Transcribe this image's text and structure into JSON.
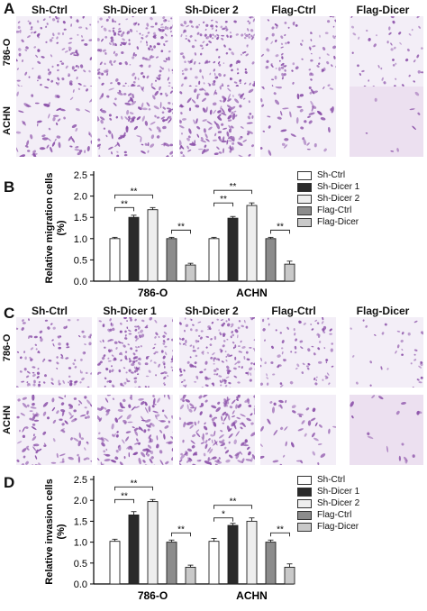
{
  "panels": {
    "A": "A",
    "B": "B",
    "C": "C",
    "D": "D"
  },
  "column_headers": [
    "Sh-Ctrl",
    "Sh-Dicer 1",
    "Sh-Dicer 2",
    "Flag-Ctrl",
    "Flag-Dicer"
  ],
  "row_labels": [
    "786-O",
    "ACHN"
  ],
  "legend": [
    "Sh-Ctrl",
    "Sh-Dicer 1",
    "Sh-Dicer 2",
    "Flag-Ctrl",
    "Flag-Dicer"
  ],
  "colors": {
    "Sh-Ctrl": "#ffffff",
    "Sh-Dicer 1": "#2a2a2a",
    "Sh-Dicer 2": "#eeeeee",
    "Flag-Ctrl": "#8c8c8c",
    "Flag-Dicer": "#c9c9c9",
    "stain": "#8a4fa8",
    "background": "#f3eef7"
  },
  "micro_density": {
    "A": [
      [
        0.7,
        1.0,
        0.9,
        0.5,
        0.3
      ],
      [
        0.4,
        0.7,
        0.8,
        0.3,
        0.05
      ]
    ],
    "C": [
      [
        0.6,
        1.0,
        1.0,
        0.5,
        0.2
      ],
      [
        0.6,
        0.8,
        0.9,
        0.25,
        0.1
      ]
    ]
  },
  "chart_data": [
    {
      "type": "bar",
      "title": "",
      "xlabel": "",
      "ylabel": "Relative migration cells\n(%)",
      "categories": [
        "786-O",
        "ACHN"
      ],
      "series": [
        {
          "name": "Sh-Ctrl",
          "values": [
            1.0,
            1.0
          ],
          "errors": [
            0.03,
            0.03
          ]
        },
        {
          "name": "Sh-Dicer 1",
          "values": [
            1.5,
            1.48
          ],
          "errors": [
            0.05,
            0.04
          ]
        },
        {
          "name": "Sh-Dicer 2",
          "values": [
            1.68,
            1.78
          ],
          "errors": [
            0.05,
            0.06
          ]
        },
        {
          "name": "Flag-Ctrl",
          "values": [
            1.0,
            1.0
          ],
          "errors": [
            0.03,
            0.03
          ]
        },
        {
          "name": "Flag-Dicer",
          "values": [
            0.38,
            0.4
          ],
          "errors": [
            0.04,
            0.07
          ]
        }
      ],
      "yticks": [
        "0.0",
        "0.5",
        "1.0",
        "1.5",
        "2.0",
        "2.5"
      ],
      "ylim": [
        0,
        2.5
      ],
      "significance": "**",
      "grid": false,
      "legend_position": "right"
    },
    {
      "type": "bar",
      "title": "",
      "xlabel": "",
      "ylabel": "Relative invasion cells\n(%)",
      "categories": [
        "786-O",
        "ACHN"
      ],
      "series": [
        {
          "name": "Sh-Ctrl",
          "values": [
            1.02,
            1.02
          ],
          "errors": [
            0.05,
            0.07
          ]
        },
        {
          "name": "Sh-Dicer 1",
          "values": [
            1.65,
            1.4
          ],
          "errors": [
            0.08,
            0.05
          ]
        },
        {
          "name": "Sh-Dicer 2",
          "values": [
            1.97,
            1.5
          ],
          "errors": [
            0.05,
            0.08
          ]
        },
        {
          "name": "Flag-Ctrl",
          "values": [
            1.0,
            1.0
          ],
          "errors": [
            0.05,
            0.05
          ]
        },
        {
          "name": "Flag-Dicer",
          "values": [
            0.4,
            0.4
          ],
          "errors": [
            0.05,
            0.08
          ]
        }
      ],
      "yticks": [
        "0.0",
        "0.5",
        "1.0",
        "1.5",
        "2.0",
        "2.5"
      ],
      "ylim": [
        0,
        2.5
      ],
      "significance_786": [
        "**",
        "**",
        "**"
      ],
      "significance_achn": [
        "*",
        "**",
        "**"
      ],
      "grid": false,
      "legend_position": "right"
    }
  ]
}
